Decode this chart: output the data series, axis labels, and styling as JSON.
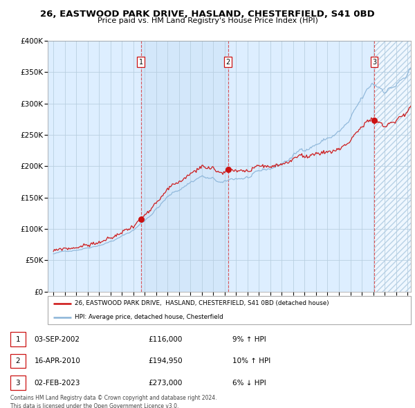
{
  "title_line1": "26, EASTWOOD PARK DRIVE, HASLAND, CHESTERFIELD, S41 0BD",
  "title_line2": "Price paid vs. HM Land Registry's House Price Index (HPI)",
  "ylim": [
    0,
    400000
  ],
  "yticks": [
    0,
    50000,
    100000,
    150000,
    200000,
    250000,
    300000,
    350000,
    400000
  ],
  "ytick_labels": [
    "£0",
    "£50K",
    "£100K",
    "£150K",
    "£200K",
    "£250K",
    "£300K",
    "£350K",
    "£400K"
  ],
  "x_start_year": 1995,
  "x_end_year": 2026,
  "hpi_color": "#8ab4d8",
  "price_color": "#cc1111",
  "bg_color": "#ddeeff",
  "purchases": [
    {
      "date_decimal": 2002.67,
      "price": 116000,
      "label": "1"
    },
    {
      "date_decimal": 2010.29,
      "price": 194950,
      "label": "2"
    },
    {
      "date_decimal": 2023.09,
      "price": 273000,
      "label": "3"
    }
  ],
  "legend_price_label": "26, EASTWOOD PARK DRIVE,  HASLAND, CHESTERFIELD, S41 0BD (detached house)",
  "legend_hpi_label": "HPI: Average price, detached house, Chesterfield",
  "table_rows": [
    {
      "num": "1",
      "date": "03-SEP-2002",
      "price": "£116,000",
      "change": "9% ↑ HPI"
    },
    {
      "num": "2",
      "date": "16-APR-2010",
      "price": "£194,950",
      "change": "10% ↑ HPI"
    },
    {
      "num": "3",
      "date": "02-FEB-2023",
      "price": "£273,000",
      "change": "6% ↓ HPI"
    }
  ],
  "footer": "Contains HM Land Registry data © Crown copyright and database right 2024.\nThis data is licensed under the Open Government Licence v3.0."
}
